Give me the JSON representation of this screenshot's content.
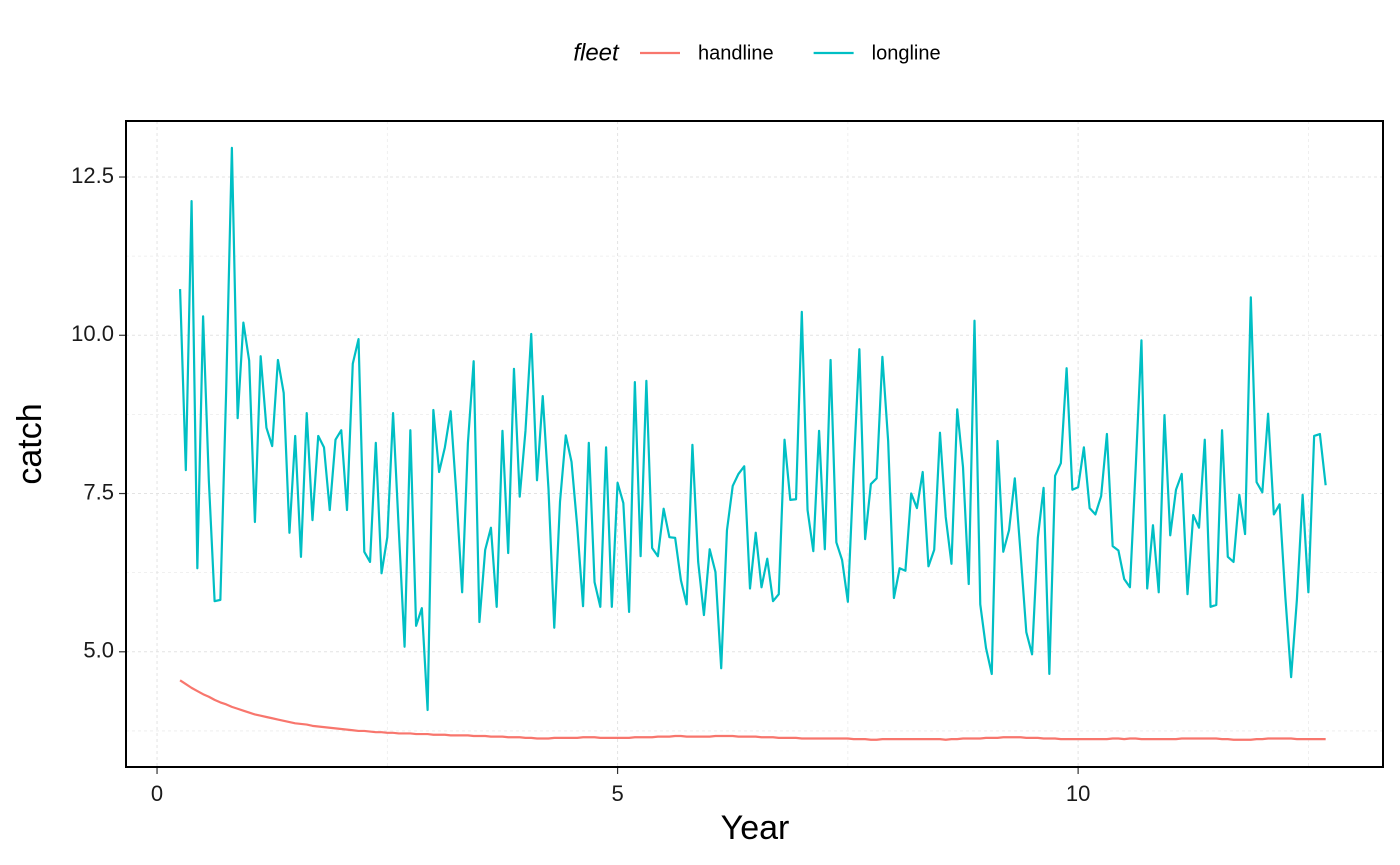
{
  "chart_data": {
    "type": "line",
    "x_label": "Year",
    "y_label": "catch",
    "legend_title": "fleet",
    "legend_position": "top",
    "xlim": [
      -0.337,
      13.31
    ],
    "ylim": [
      3.18,
      13.385
    ],
    "xticks": [
      0,
      5,
      10
    ],
    "yticks": [
      {
        "value": 5,
        "label": "5.0"
      },
      7.5,
      {
        "value": 10,
        "label": "10.0"
      },
      12.5
    ],
    "minor_xticks": [
      2.5,
      7.5,
      12.5
    ],
    "minor_yticks": [
      3.75,
      6.25,
      8.75,
      11.25
    ],
    "grid": true,
    "x": [
      0.25,
      0.3125,
      0.375,
      0.4375,
      0.5,
      0.5625,
      0.625,
      0.6875,
      0.75,
      0.8125,
      0.875,
      0.9375,
      1,
      1.0625,
      1.125,
      1.1875,
      1.25,
      1.3125,
      1.375,
      1.4375,
      1.5,
      1.5625,
      1.625,
      1.6875,
      1.75,
      1.8125,
      1.875,
      1.9375,
      2,
      2.0625,
      2.125,
      2.1875,
      2.25,
      2.3125,
      2.375,
      2.4375,
      2.5,
      2.5625,
      2.625,
      2.6875,
      2.75,
      2.8125,
      2.875,
      2.9375,
      3,
      3.0625,
      3.125,
      3.1875,
      3.25,
      3.3125,
      3.375,
      3.4375,
      3.5,
      3.5625,
      3.625,
      3.6875,
      3.75,
      3.8125,
      3.875,
      3.9375,
      4,
      4.0625,
      4.125,
      4.1875,
      4.25,
      4.3125,
      4.375,
      4.4375,
      4.5,
      4.5625,
      4.625,
      4.6875,
      4.75,
      4.8125,
      4.875,
      4.9375,
      5,
      5.0625,
      5.125,
      5.1875,
      5.25,
      5.3125,
      5.375,
      5.4375,
      5.5,
      5.5625,
      5.625,
      5.6875,
      5.75,
      5.8125,
      5.875,
      5.9375,
      6,
      6.0625,
      6.125,
      6.1875,
      6.25,
      6.3125,
      6.375,
      6.4375,
      6.5,
      6.5625,
      6.625,
      6.6875,
      6.75,
      6.8125,
      6.875,
      6.9375,
      7,
      7.0625,
      7.125,
      7.1875,
      7.25,
      7.3125,
      7.375,
      7.4375,
      7.5,
      7.5625,
      7.625,
      7.6875,
      7.75,
      7.8125,
      7.875,
      7.9375,
      8,
      8.0625,
      8.125,
      8.1875,
      8.25,
      8.3125,
      8.375,
      8.4375,
      8.5,
      8.5625,
      8.625,
      8.6875,
      8.75,
      8.8125,
      8.875,
      8.9375,
      9,
      9.0625,
      9.125,
      9.1875,
      9.25,
      9.3125,
      9.375,
      9.4375,
      9.5,
      9.5625,
      9.625,
      9.6875,
      9.75,
      9.8125,
      9.875,
      9.9375,
      10,
      10.0625,
      10.125,
      10.1875,
      10.25,
      10.3125,
      10.375,
      10.4375,
      10.5,
      10.5625,
      10.625,
      10.6875,
      10.75,
      10.8125,
      10.875,
      10.9375,
      11,
      11.0625,
      11.125,
      11.1875,
      11.25,
      11.3125,
      11.375,
      11.4375,
      11.5,
      11.5625,
      11.625,
      11.6875,
      11.75,
      11.8125,
      11.875,
      11.9375,
      12,
      12.0625,
      12.125,
      12.1875,
      12.25,
      12.3125,
      12.375,
      12.4375,
      12.5,
      12.5625,
      12.625,
      12.6875
    ],
    "series": [
      {
        "name": "handline",
        "color": "#F8766D",
        "values": [
          4.55,
          4.49,
          4.43,
          4.38,
          4.33,
          4.29,
          4.24,
          4.2,
          4.17,
          4.13,
          4.1,
          4.07,
          4.04,
          4.01,
          3.99,
          3.97,
          3.95,
          3.93,
          3.91,
          3.89,
          3.87,
          3.86,
          3.85,
          3.83,
          3.82,
          3.81,
          3.8,
          3.79,
          3.78,
          3.77,
          3.76,
          3.75,
          3.75,
          3.74,
          3.73,
          3.73,
          3.72,
          3.72,
          3.71,
          3.71,
          3.71,
          3.7,
          3.7,
          3.7,
          3.69,
          3.69,
          3.69,
          3.68,
          3.68,
          3.68,
          3.68,
          3.67,
          3.67,
          3.67,
          3.66,
          3.66,
          3.66,
          3.65,
          3.65,
          3.65,
          3.64,
          3.64,
          3.63,
          3.63,
          3.63,
          3.64,
          3.64,
          3.64,
          3.64,
          3.64,
          3.65,
          3.65,
          3.65,
          3.64,
          3.64,
          3.64,
          3.64,
          3.64,
          3.64,
          3.65,
          3.65,
          3.65,
          3.65,
          3.66,
          3.66,
          3.66,
          3.67,
          3.67,
          3.66,
          3.66,
          3.66,
          3.66,
          3.66,
          3.67,
          3.67,
          3.67,
          3.67,
          3.66,
          3.66,
          3.66,
          3.66,
          3.65,
          3.65,
          3.65,
          3.64,
          3.64,
          3.64,
          3.64,
          3.63,
          3.63,
          3.63,
          3.63,
          3.63,
          3.63,
          3.63,
          3.63,
          3.63,
          3.62,
          3.62,
          3.62,
          3.61,
          3.61,
          3.62,
          3.62,
          3.62,
          3.62,
          3.62,
          3.62,
          3.62,
          3.62,
          3.62,
          3.62,
          3.62,
          3.61,
          3.62,
          3.62,
          3.63,
          3.63,
          3.63,
          3.63,
          3.64,
          3.64,
          3.64,
          3.65,
          3.65,
          3.65,
          3.65,
          3.64,
          3.64,
          3.64,
          3.63,
          3.63,
          3.63,
          3.62,
          3.62,
          3.62,
          3.62,
          3.62,
          3.62,
          3.62,
          3.62,
          3.62,
          3.63,
          3.63,
          3.62,
          3.63,
          3.63,
          3.62,
          3.62,
          3.62,
          3.62,
          3.62,
          3.62,
          3.62,
          3.63,
          3.63,
          3.63,
          3.63,
          3.63,
          3.63,
          3.63,
          3.62,
          3.62,
          3.61,
          3.61,
          3.61,
          3.61,
          3.62,
          3.62,
          3.63,
          3.63,
          3.63,
          3.63,
          3.63,
          3.62,
          3.62,
          3.62,
          3.62,
          3.62,
          3.62
        ]
      },
      {
        "name": "longline",
        "color": "#00BFC4",
        "values": [
          10.73,
          7.87,
          12.12,
          6.32,
          10.3,
          7.7,
          5.8,
          5.82,
          9.1,
          12.96,
          8.69,
          10.2,
          9.6,
          7.05,
          9.67,
          8.54,
          8.25,
          9.61,
          9.09,
          6.88,
          8.41,
          6.5,
          8.77,
          7.08,
          8.41,
          8.23,
          7.24,
          8.35,
          8.5,
          7.24,
          9.55,
          9.94,
          6.58,
          6.42,
          8.3,
          6.24,
          6.81,
          8.77,
          6.92,
          5.08,
          8.5,
          5.41,
          5.69,
          4.08,
          8.82,
          7.84,
          8.23,
          8.8,
          7.48,
          5.94,
          8.3,
          9.59,
          5.47,
          6.61,
          6.96,
          5.71,
          8.49,
          6.56,
          9.47,
          7.45,
          8.49,
          10.02,
          7.71,
          9.04,
          7.57,
          5.38,
          7.37,
          8.42,
          8.0,
          6.97,
          5.72,
          8.3,
          6.1,
          5.71,
          8.23,
          5.71,
          7.67,
          7.35,
          5.63,
          9.26,
          6.51,
          9.28,
          6.64,
          6.51,
          7.26,
          6.81,
          6.8,
          6.13,
          5.75,
          8.27,
          6.42,
          5.58,
          6.62,
          6.26,
          4.74,
          6.92,
          7.62,
          7.81,
          7.93,
          6.0,
          6.88,
          6.02,
          6.47,
          5.8,
          5.91,
          8.35,
          7.4,
          7.41,
          10.37,
          7.24,
          6.59,
          8.49,
          6.62,
          9.61,
          6.73,
          6.45,
          5.79,
          7.87,
          9.78,
          6.78,
          7.65,
          7.74,
          9.66,
          8.33,
          5.85,
          6.32,
          6.28,
          7.5,
          7.27,
          7.84,
          6.35,
          6.61,
          8.46,
          7.13,
          6.39,
          8.83,
          7.92,
          6.07,
          10.23,
          5.75,
          5.06,
          4.65,
          8.33,
          6.58,
          6.92,
          7.74,
          6.56,
          5.31,
          4.96,
          6.8,
          7.59,
          4.65,
          7.78,
          7.98,
          9.48,
          7.56,
          7.6,
          8.23,
          7.27,
          7.17,
          7.46,
          8.44,
          6.67,
          6.6,
          6.15,
          6.02,
          7.9,
          9.92,
          6.0,
          7.0,
          5.94,
          8.74,
          6.84,
          7.56,
          7.81,
          5.91,
          7.16,
          6.96,
          8.35,
          5.71,
          5.74,
          8.5,
          6.5,
          6.42,
          7.48,
          6.86,
          10.6,
          7.68,
          7.52,
          8.76,
          7.17,
          7.33,
          5.86,
          4.6,
          5.82,
          7.48,
          5.94,
          8.41,
          8.44,
          7.63
        ]
      }
    ]
  }
}
